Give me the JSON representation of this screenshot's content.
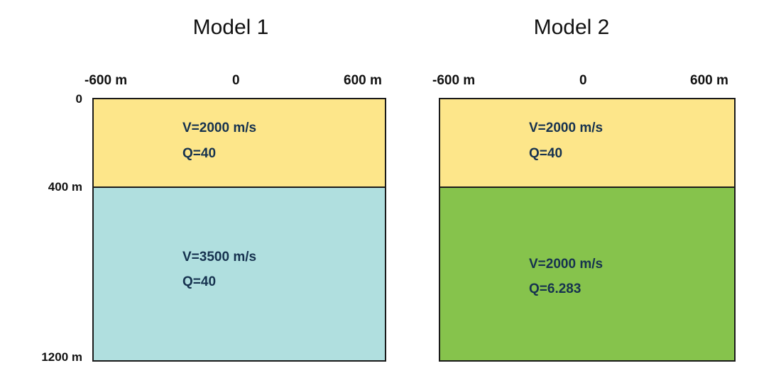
{
  "x_axis": {
    "left": "-600 m",
    "center": "0",
    "right": "600 m"
  },
  "depth_axis": {
    "top": "0",
    "interface": "400 m",
    "bottom": "1200 m"
  },
  "models": [
    {
      "title": "Model 1",
      "layers": [
        {
          "velocity": "V=2000 m/s",
          "q": "Q=40",
          "color": "#fde68a"
        },
        {
          "velocity": "V=3500 m/s",
          "q": "Q=40",
          "color": "#b0dfdf"
        }
      ]
    },
    {
      "title": "Model 2",
      "layers": [
        {
          "velocity": "V=2000 m/s",
          "q": "Q=40",
          "color": "#fde68a"
        },
        {
          "velocity": "V=2000 m/s",
          "q": "Q=6.283",
          "color": "#86c34c"
        }
      ]
    }
  ]
}
